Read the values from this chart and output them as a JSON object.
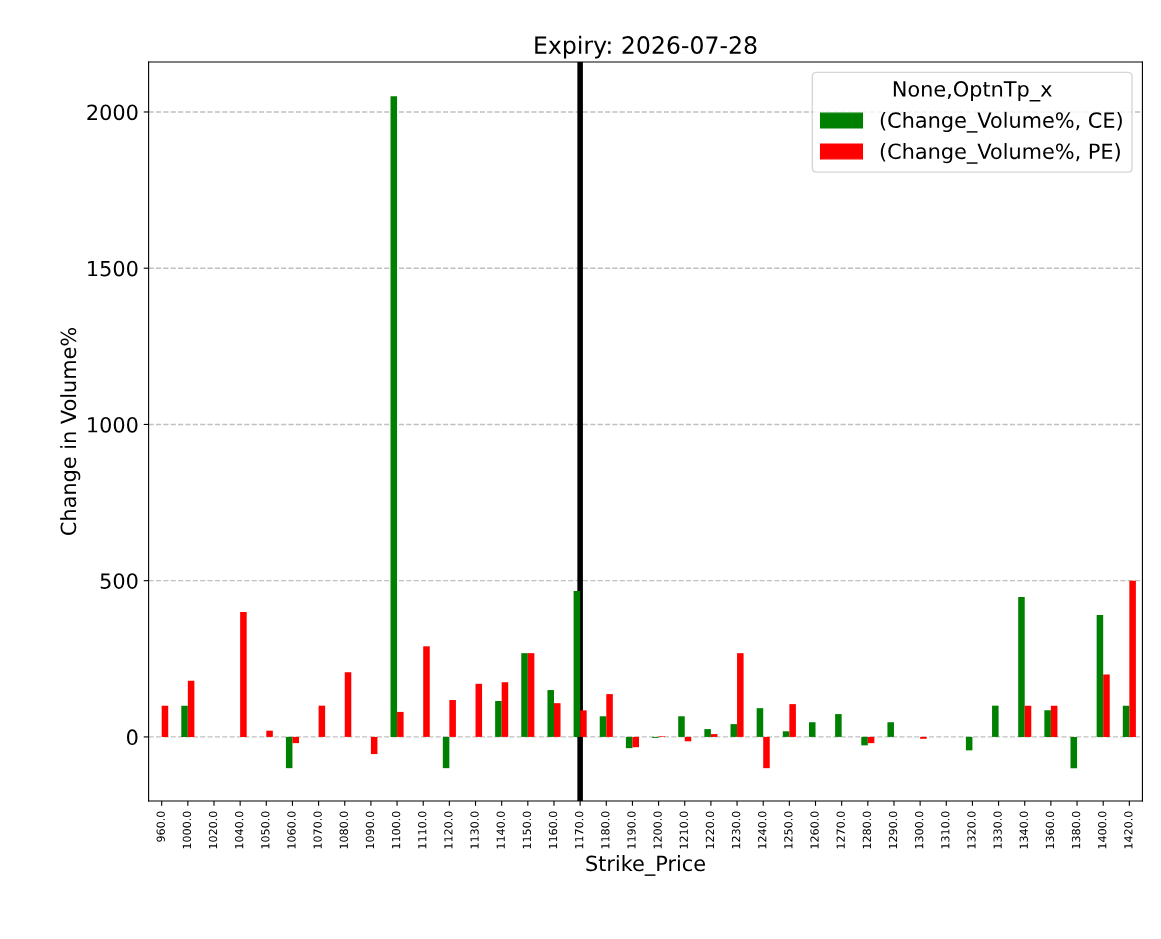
{
  "chart_data": {
    "type": "bar",
    "title": "Expiry: 2026-07-28",
    "xlabel": "Strike_Price",
    "ylabel": "Change in Volume%",
    "legend_title": "None,OptnTp_x",
    "categories": [
      "960.0",
      "1000.0",
      "1020.0",
      "1040.0",
      "1050.0",
      "1060.0",
      "1070.0",
      "1080.0",
      "1090.0",
      "1100.0",
      "1110.0",
      "1120.0",
      "1130.0",
      "1140.0",
      "1150.0",
      "1160.0",
      "1170.0",
      "1180.0",
      "1190.0",
      "1200.0",
      "1210.0",
      "1220.0",
      "1230.0",
      "1240.0",
      "1250.0",
      "1260.0",
      "1270.0",
      "1280.0",
      "1290.0",
      "1300.0",
      "1310.0",
      "1320.0",
      "1330.0",
      "1340.0",
      "1360.0",
      "1380.0",
      "1400.0",
      "1420.0"
    ],
    "series": [
      {
        "name": "(Change_Volume%, CE)",
        "color": "#008000",
        "values": [
          null,
          100,
          null,
          null,
          null,
          -100,
          null,
          null,
          null,
          2050,
          null,
          -100,
          null,
          115,
          268,
          150,
          467,
          66,
          -36,
          -3,
          66,
          25,
          41,
          92,
          18,
          47,
          73,
          -27,
          47,
          null,
          null,
          -43,
          100,
          448,
          85,
          -100,
          390,
          100
        ]
      },
      {
        "name": "(Change_Volume%, PE)",
        "color": "#ff0000",
        "values": [
          100,
          180,
          null,
          400,
          20,
          -20,
          100,
          207,
          -55,
          80,
          290,
          118,
          170,
          175,
          268,
          108,
          85,
          137,
          -33,
          2,
          -14,
          9,
          268,
          -100,
          105,
          null,
          null,
          -20,
          null,
          -6,
          null,
          null,
          null,
          100,
          100,
          null,
          200,
          500
        ]
      }
    ],
    "ylim": [
      -205,
      2160
    ],
    "yticks": [
      0,
      500,
      1000,
      1500,
      2000
    ],
    "grid": "y",
    "legend": "top right",
    "ref_lines": [
      {
        "axis": "x",
        "value": "1170.0",
        "color": "#000000",
        "line_style": "solid"
      }
    ]
  }
}
